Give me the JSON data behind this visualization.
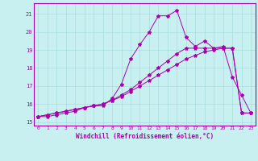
{
  "xlabel": "Windchill (Refroidissement éolien,°C)",
  "bg_color": "#c8f0f0",
  "line_color": "#aa00aa",
  "grid_color": "#aadddd",
  "xlim": [
    -0.5,
    23.5
  ],
  "ylim": [
    14.8,
    21.6
  ],
  "yticks": [
    15,
    16,
    17,
    18,
    19,
    20,
    21
  ],
  "xticks": [
    0,
    1,
    2,
    3,
    4,
    5,
    6,
    7,
    8,
    9,
    10,
    11,
    12,
    13,
    14,
    15,
    16,
    17,
    18,
    19,
    20,
    21,
    22,
    23
  ],
  "series1_x": [
    0,
    1,
    2,
    3,
    4,
    5,
    6,
    7,
    8,
    9,
    10,
    11,
    12,
    13,
    14,
    15,
    16,
    17,
    18,
    19,
    20,
    21,
    22,
    23
  ],
  "series1_y": [
    15.3,
    15.3,
    15.4,
    15.5,
    15.6,
    15.8,
    15.9,
    15.9,
    16.3,
    17.1,
    18.5,
    19.3,
    20.0,
    20.9,
    20.9,
    21.2,
    19.7,
    19.2,
    19.5,
    19.1,
    19.2,
    17.5,
    16.5,
    15.5
  ],
  "series2_x": [
    0,
    1,
    2,
    3,
    4,
    5,
    6,
    7,
    8,
    9,
    10,
    11,
    12,
    13,
    14,
    15,
    16,
    17,
    18,
    19,
    20,
    21,
    22,
    23
  ],
  "series2_y": [
    15.3,
    15.4,
    15.5,
    15.6,
    15.7,
    15.8,
    15.9,
    16.0,
    16.2,
    16.4,
    16.7,
    17.0,
    17.3,
    17.6,
    17.9,
    18.2,
    18.5,
    18.7,
    18.9,
    19.0,
    19.1,
    19.1,
    15.5,
    15.5
  ],
  "series3_x": [
    0,
    1,
    2,
    3,
    4,
    5,
    6,
    7,
    8,
    9,
    10,
    11,
    12,
    13,
    14,
    15,
    16,
    17,
    18,
    19,
    20,
    21,
    22,
    23
  ],
  "series3_y": [
    15.3,
    15.4,
    15.5,
    15.6,
    15.7,
    15.8,
    15.9,
    16.0,
    16.2,
    16.5,
    16.8,
    17.2,
    17.6,
    18.0,
    18.4,
    18.8,
    19.1,
    19.1,
    19.1,
    19.1,
    19.1,
    19.1,
    15.5,
    15.5
  ]
}
